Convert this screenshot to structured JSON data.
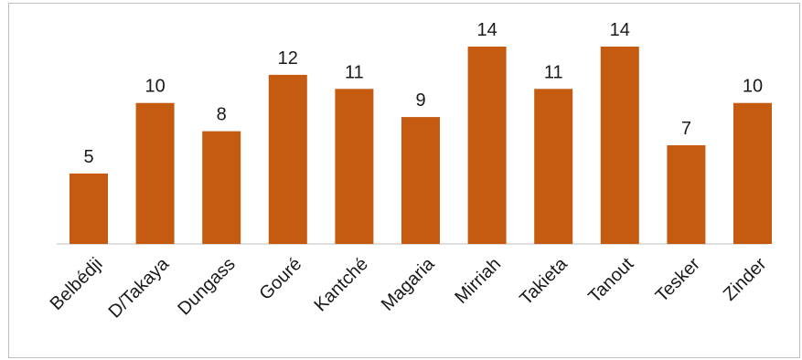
{
  "chart_data": {
    "type": "bar",
    "title": "",
    "xlabel": "",
    "ylabel": "",
    "ylim": [
      0,
      14
    ],
    "grid": false,
    "legend": "none",
    "categories": [
      "Belbédji",
      "D/Takaya",
      "Dungass",
      "Gouré",
      "Kantché",
      "Magaria",
      "Mirriah",
      "Takieta",
      "Tanout",
      "Tesker",
      "Zinder"
    ],
    "series": [
      {
        "values": [
          5,
          10,
          8,
          12,
          11,
          9,
          14,
          11,
          14,
          7,
          10
        ]
      }
    ],
    "colors": {
      "bar": "#c55a11",
      "axis": "#bfbfbf"
    }
  }
}
